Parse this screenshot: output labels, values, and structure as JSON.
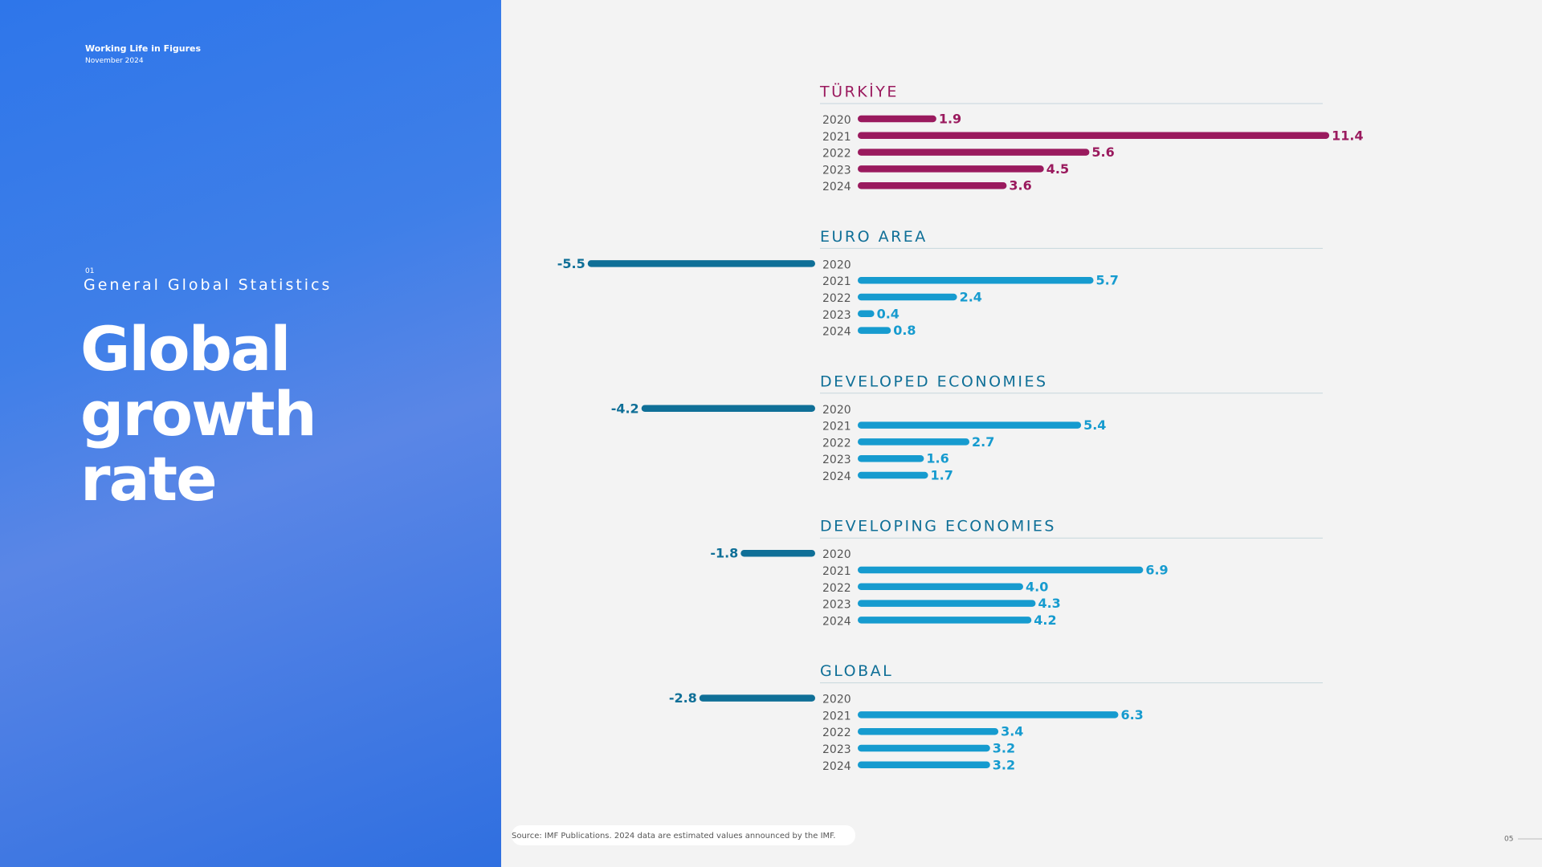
{
  "header": {
    "title": "Working Life in Figures",
    "date": "November 2024"
  },
  "section": {
    "number": "01",
    "title": "General Global Statistics"
  },
  "headline": [
    "Global",
    "growth",
    "rate"
  ],
  "chart_data": [
    {
      "type": "bar",
      "title": "TÜRKİYE",
      "categories": [
        "2020",
        "2021",
        "2022",
        "2023",
        "2024"
      ],
      "values": [
        1.9,
        11.4,
        5.6,
        4.5,
        3.6
      ],
      "color": "#9a1a5e",
      "negative_color": "#9a1a5e"
    },
    {
      "type": "bar",
      "title": "EURO AREA",
      "categories": [
        "2020",
        "2021",
        "2022",
        "2023",
        "2024"
      ],
      "values": [
        -5.5,
        5.7,
        2.4,
        0.4,
        0.8
      ],
      "color": "#169bcf",
      "negative_color": "#0f6f97"
    },
    {
      "type": "bar",
      "title": "DEVELOPED ECONOMIES",
      "categories": [
        "2020",
        "2021",
        "2022",
        "2023",
        "2024"
      ],
      "values": [
        -4.2,
        5.4,
        2.7,
        1.6,
        1.7
      ],
      "color": "#169bcf",
      "negative_color": "#0f6f97"
    },
    {
      "type": "bar",
      "title": "DEVELOPING ECONOMIES",
      "categories": [
        "2020",
        "2021",
        "2022",
        "2023",
        "2024"
      ],
      "values": [
        -1.8,
        6.9,
        4.0,
        4.3,
        4.2
      ],
      "value_labels": [
        "-1.8",
        "6.9",
        "4.0",
        "4.3",
        "4.2"
      ],
      "color": "#169bcf",
      "negative_color": "#0f6f97"
    },
    {
      "type": "bar",
      "title": "GLOBAL",
      "categories": [
        "2020",
        "2021",
        "2022",
        "2023",
        "2024"
      ],
      "values": [
        -2.8,
        6.3,
        3.4,
        3.2,
        3.2
      ],
      "color": "#169bcf",
      "negative_color": "#0f6f97"
    }
  ],
  "source": "Source: IMF Publications. 2024 data are estimated values announced by the IMF.",
  "page_number": "05"
}
